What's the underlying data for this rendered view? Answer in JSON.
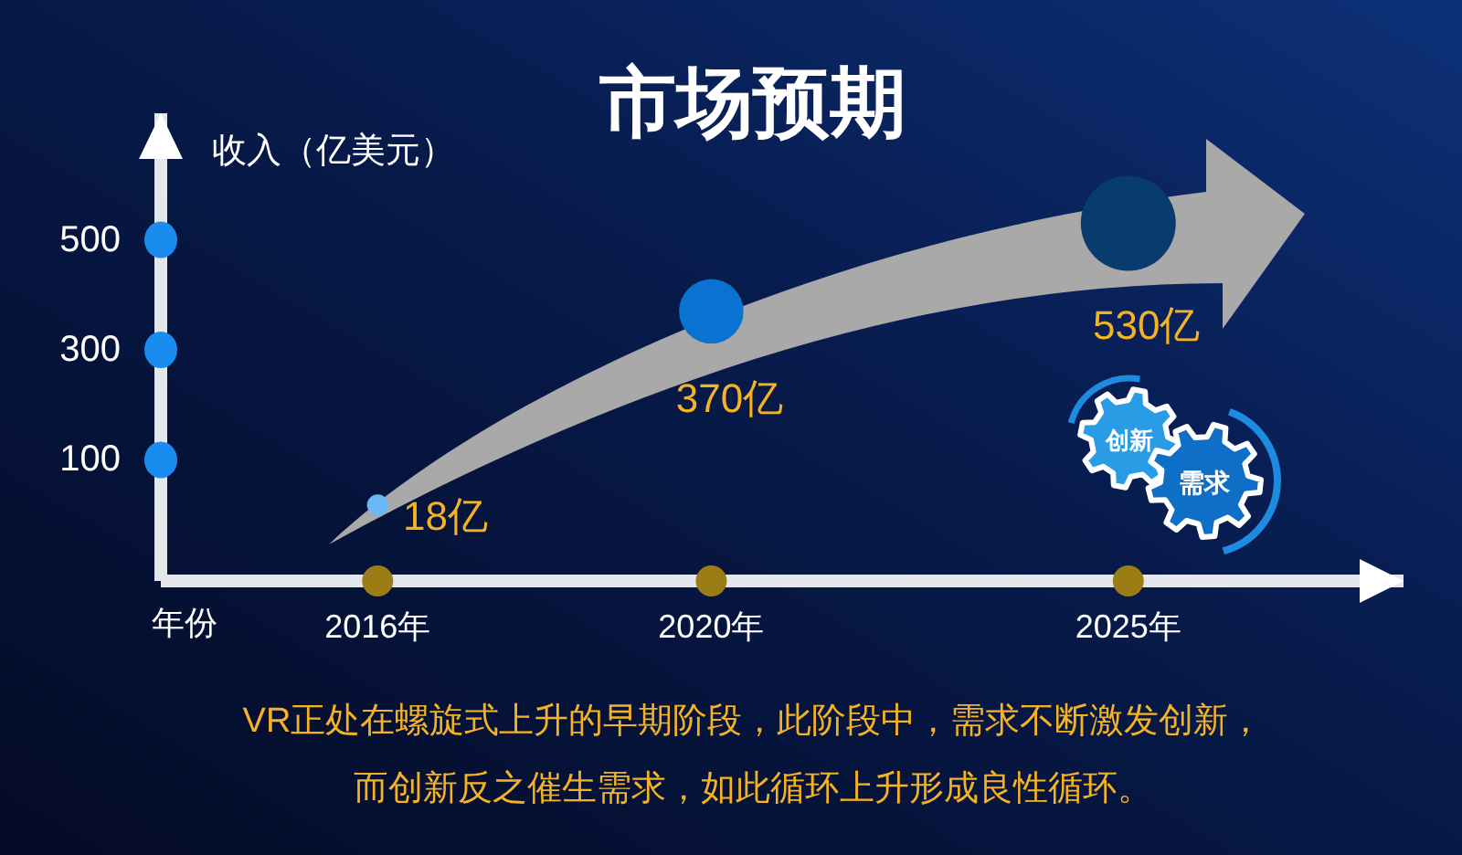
{
  "chart_data": {
    "type": "bubble",
    "title": "市场预期",
    "xlabel": "年份",
    "ylabel": "收入（亿美元）",
    "x": [
      2016,
      2020,
      2025
    ],
    "values": [
      18,
      370,
      530
    ],
    "sizes": [
      0.05,
      0.46,
      1
    ],
    "colors": [
      "#6cb8f4",
      "#0a72d0",
      "#083c6e"
    ],
    "value_labels": [
      "18亿",
      "370亿",
      "530亿"
    ],
    "xlim": [
      2013.4,
      2028.3
    ],
    "xticks": [
      {
        "value": 2016,
        "label": "2016年"
      },
      {
        "value": 2020,
        "label": "2020年"
      },
      {
        "value": 2025,
        "label": "2025年"
      }
    ],
    "ylim": [
      -120,
      730
    ],
    "yticks": [
      100,
      300,
      500
    ],
    "annotations": [
      "创新",
      "需求",
      "VR正处在螺旋式上升的早期阶段，此阶段中，需求不断激发创新，",
      "而创新反之催生需求，如此循环上升形成良性循环。"
    ]
  }
}
